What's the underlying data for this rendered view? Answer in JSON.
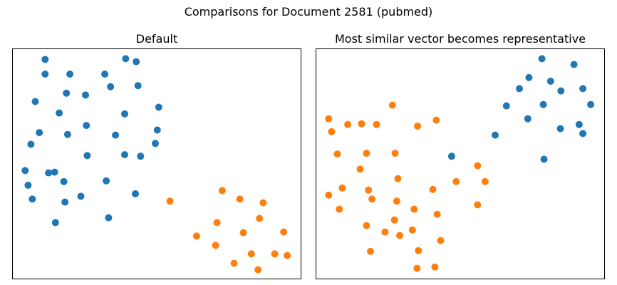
{
  "figure_title": "Comparisons for Document 2581 (pubmed)",
  "colors": {
    "series_blue": "#1f77b4",
    "series_orange": "#ff7f0e",
    "axes": "#000000"
  },
  "chart_data": [
    {
      "type": "scatter",
      "title": "Default",
      "xlabel": "",
      "ylabel": "",
      "xlim": [
        0,
        100
      ],
      "ylim": [
        0,
        100
      ],
      "ticks": "none",
      "grid": false,
      "legend": "none",
      "series": [
        {
          "color": "#1f77b4",
          "points": [
            [
              11.3,
              95.4
            ],
            [
              39.2,
              95.7
            ],
            [
              42.9,
              94.4
            ],
            [
              19.9,
              89.0
            ],
            [
              32.0,
              89.0
            ],
            [
              11.3,
              89.0
            ],
            [
              43.5,
              84.0
            ],
            [
              34.0,
              83.5
            ],
            [
              18.7,
              80.7
            ],
            [
              25.3,
              79.9
            ],
            [
              7.9,
              77.1
            ],
            [
              50.7,
              74.6
            ],
            [
              16.2,
              72.1
            ],
            [
              38.9,
              71.7
            ],
            [
              25.6,
              66.7
            ],
            [
              9.3,
              63.6
            ],
            [
              50.2,
              64.7
            ],
            [
              19.1,
              62.8
            ],
            [
              35.7,
              62.5
            ],
            [
              6.4,
              58.5
            ],
            [
              49.5,
              58.9
            ],
            [
              25.9,
              53.6
            ],
            [
              38.9,
              54.0
            ],
            [
              44.4,
              53.3
            ],
            [
              4.4,
              47.1
            ],
            [
              12.5,
              46.1
            ],
            [
              14.6,
              46.4
            ],
            [
              17.8,
              42.3
            ],
            [
              32.5,
              42.6
            ],
            [
              5.4,
              40.7
            ],
            [
              42.6,
              37.0
            ],
            [
              23.7,
              35.9
            ],
            [
              6.9,
              34.7
            ],
            [
              18.2,
              33.4
            ],
            [
              14.9,
              24.5
            ],
            [
              33.3,
              26.6
            ]
          ]
        },
        {
          "color": "#ff7f0e",
          "points": [
            [
              54.6,
              33.8
            ],
            [
              72.7,
              38.4
            ],
            [
              78.8,
              34.7
            ],
            [
              86.9,
              33.1
            ],
            [
              85.6,
              26.3
            ],
            [
              70.9,
              24.5
            ],
            [
              80.0,
              20.1
            ],
            [
              94.0,
              20.4
            ],
            [
              63.8,
              18.6
            ],
            [
              70.4,
              14.6
            ],
            [
              82.8,
              10.9
            ],
            [
              90.9,
              10.9
            ],
            [
              95.2,
              10.2
            ],
            [
              76.8,
              6.8
            ],
            [
              85.1,
              4.0
            ]
          ]
        }
      ]
    },
    {
      "type": "scatter",
      "title": "Most similar vector becomes representative",
      "xlabel": "",
      "ylabel": "",
      "xlim": [
        0,
        100
      ],
      "ylim": [
        0,
        100
      ],
      "ticks": "none",
      "grid": false,
      "legend": "none",
      "series": [
        {
          "color": "#1f77b4",
          "points": [
            [
              78.3,
              95.7
            ],
            [
              89.4,
              93.2
            ],
            [
              73.8,
              87.5
            ],
            [
              81.3,
              85.9
            ],
            [
              70.5,
              82.7
            ],
            [
              84.9,
              81.7
            ],
            [
              92.5,
              82.7
            ],
            [
              66.0,
              75.2
            ],
            [
              78.8,
              75.8
            ],
            [
              95.2,
              75.8
            ],
            [
              73.4,
              69.6
            ],
            [
              84.7,
              65.3
            ],
            [
              91.2,
              67.1
            ],
            [
              62.1,
              62.5
            ],
            [
              92.5,
              63.2
            ],
            [
              47.0,
              53.3
            ],
            [
              79.0,
              52.0
            ]
          ]
        },
        {
          "color": "#ff7f0e",
          "points": [
            [
              26.5,
              75.5
            ],
            [
              4.4,
              69.6
            ],
            [
              21.0,
              67.1
            ],
            [
              41.7,
              69.0
            ],
            [
              15.8,
              67.4
            ],
            [
              11.0,
              67.1
            ],
            [
              35.2,
              66.4
            ],
            [
              5.4,
              64.0
            ],
            [
              7.4,
              54.3
            ],
            [
              17.5,
              54.6
            ],
            [
              27.4,
              54.6
            ],
            [
              15.3,
              47.7
            ],
            [
              56.0,
              49.2
            ],
            [
              28.4,
              43.6
            ],
            [
              48.6,
              42.3
            ],
            [
              58.6,
              42.3
            ],
            [
              9.1,
              39.5
            ],
            [
              18.2,
              38.6
            ],
            [
              40.5,
              38.9
            ],
            [
              4.4,
              36.4
            ],
            [
              19.4,
              34.7
            ],
            [
              28.0,
              33.8
            ],
            [
              56.0,
              32.2
            ],
            [
              8.1,
              30.3
            ],
            [
              34.0,
              30.3
            ],
            [
              42.0,
              28.1
            ],
            [
              27.2,
              25.6
            ],
            [
              17.5,
              23.2
            ],
            [
              33.4,
              21.3
            ],
            [
              23.9,
              20.4
            ],
            [
              29.0,
              18.9
            ],
            [
              43.2,
              16.7
            ],
            [
              18.9,
              12.0
            ],
            [
              35.5,
              12.3
            ],
            [
              35.0,
              4.6
            ],
            [
              41.2,
              5.2
            ]
          ]
        }
      ]
    }
  ]
}
